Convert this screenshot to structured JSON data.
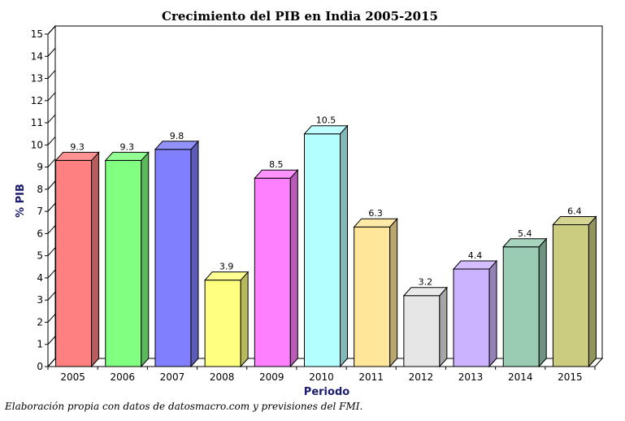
{
  "chart_data": {
    "type": "bar",
    "title": "Crecimiento del PIB en India 2005-2015",
    "xlabel": "Periodo",
    "ylabel": "% PIB",
    "categories": [
      "2005",
      "2006",
      "2007",
      "2008",
      "2009",
      "2010",
      "2011",
      "2012",
      "2013",
      "2014",
      "2015"
    ],
    "values": [
      9.3,
      9.3,
      9.8,
      3.9,
      8.5,
      10.5,
      6.3,
      3.2,
      4.4,
      5.4,
      6.4
    ],
    "data_labels": [
      "9.3",
      "9.3",
      "9.8",
      "3.9",
      "8.5",
      "10.5",
      "6.3",
      "3.2",
      "4.4",
      "5.4",
      "6.4"
    ],
    "colors": [
      "#ff8080",
      "#80ff80",
      "#8080ff",
      "#ffff80",
      "#ff80ff",
      "#b3ffff",
      "#ffe699",
      "#e6e6e6",
      "#ccb3ff",
      "#99ccb3",
      "#cccc80"
    ],
    "ylim": [
      0,
      15
    ],
    "yticks": [
      "0",
      "1",
      "2",
      "3",
      "4",
      "5",
      "6",
      "7",
      "8",
      "9",
      "10",
      "11",
      "12",
      "13",
      "14",
      "15"
    ],
    "grid": false,
    "style": "3d"
  },
  "footer": {
    "caption": "Elaboración propia con datos de datosmacro.com y previsiones del FMI."
  }
}
